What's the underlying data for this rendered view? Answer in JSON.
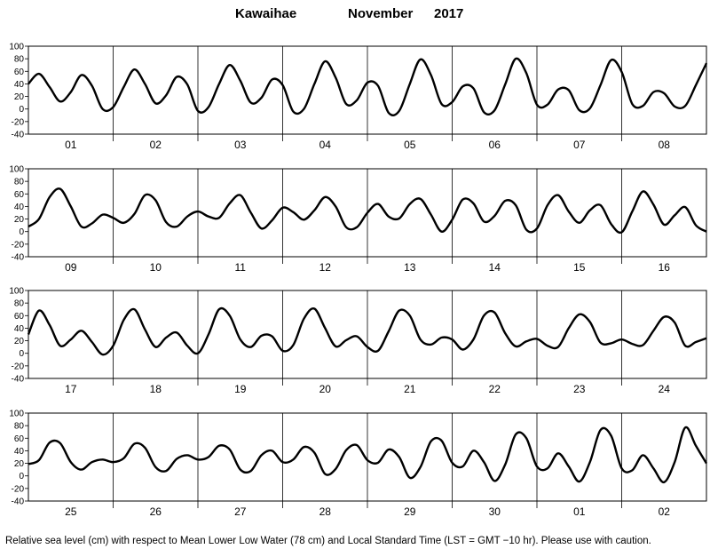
{
  "chart_data": {
    "type": "line",
    "title": {
      "location": "Kawaihae",
      "month": "November",
      "year": "2017"
    },
    "ylabel": "Relative sea level (cm)",
    "ylim": [
      -40,
      100
    ],
    "yticks": [
      -40,
      -20,
      0,
      20,
      40,
      60,
      80,
      100
    ],
    "grid": "vertical lines at day boundaries",
    "footer": "Relative sea level (cm) with respect to Mean Lower Low Water (78 cm) and Local Standard Time (LST = GMT −10 hr). Please use with caution.",
    "line_color": "#000000",
    "panels": [
      {
        "days": [
          "01",
          "02",
          "03",
          "04",
          "05",
          "06",
          "07",
          "08"
        ],
        "series": [
          {
            "x": [
              0,
              0.125,
              0.25,
              0.375,
              0.5,
              0.625,
              0.75,
              0.875,
              1.0,
              1.125,
              1.25,
              1.375,
              1.5,
              1.625,
              1.75,
              1.875,
              2.0,
              2.125,
              2.25,
              2.375,
              2.5,
              2.625,
              2.75,
              2.875,
              3.0,
              3.125,
              3.25,
              3.375,
              3.5,
              3.625,
              3.75,
              3.875,
              4.0,
              4.125,
              4.25,
              4.375,
              4.5,
              4.625,
              4.75,
              4.875,
              5.0,
              5.125,
              5.25,
              5.375,
              5.5,
              5.625,
              5.75,
              5.875,
              6.0,
              6.125,
              6.25,
              6.375,
              6.5,
              6.625,
              6.75,
              6.875,
              7.0,
              7.125,
              7.25,
              7.375,
              7.5,
              7.625,
              7.75,
              7.875,
              8.0
            ],
            "y": [
              40,
              56,
              35,
              12,
              27,
              54,
              37,
              0,
              3,
              35,
              63,
              40,
              9,
              22,
              51,
              39,
              -3,
              3,
              40,
              70,
              45,
              10,
              18,
              47,
              38,
              -4,
              0,
              40,
              76,
              50,
              8,
              14,
              42,
              37,
              -6,
              -3,
              40,
              79,
              54,
              8,
              11,
              36,
              33,
              -5,
              -2,
              39,
              80,
              57,
              7,
              7,
              31,
              30,
              -2,
              1,
              38,
              78,
              59,
              8,
              5,
              27,
              25,
              4,
              5,
              38,
              73
            ]
          }
        ]
      },
      {
        "days": [
          "09",
          "10",
          "11",
          "12",
          "13",
          "14",
          "15",
          "16"
        ],
        "series": [
          {
            "x": [
              0,
              0.125,
              0.25,
              0.375,
              0.5,
              0.625,
              0.75,
              0.875,
              1.0,
              1.125,
              1.25,
              1.375,
              1.5,
              1.625,
              1.75,
              1.875,
              2.0,
              2.125,
              2.25,
              2.375,
              2.5,
              2.625,
              2.75,
              2.875,
              3.0,
              3.125,
              3.25,
              3.375,
              3.5,
              3.625,
              3.75,
              3.875,
              4.0,
              4.125,
              4.25,
              4.375,
              4.5,
              4.625,
              4.75,
              4.875,
              5.0,
              5.125,
              5.25,
              5.375,
              5.5,
              5.625,
              5.75,
              5.875,
              6.0,
              6.125,
              6.25,
              6.375,
              6.5,
              6.625,
              6.75,
              6.875,
              7.0,
              7.125,
              7.25,
              7.375,
              7.5,
              7.625,
              7.75,
              7.875,
              8.0
            ],
            "y": [
              8,
              20,
              55,
              68,
              40,
              8,
              13,
              27,
              22,
              14,
              28,
              58,
              50,
              15,
              8,
              24,
              32,
              24,
              22,
              45,
              58,
              30,
              5,
              18,
              38,
              31,
              19,
              34,
              55,
              40,
              7,
              7,
              30,
              44,
              24,
              21,
              44,
              52,
              27,
              0,
              19,
              51,
              45,
              16,
              25,
              49,
              42,
              3,
              5,
              42,
              58,
              32,
              14,
              34,
              42,
              12,
              -1,
              32,
              64,
              43,
              11,
              26,
              39,
              10,
              0
            ]
          }
        ]
      },
      {
        "days": [
          "17",
          "18",
          "19",
          "20",
          "21",
          "22",
          "23",
          "24"
        ],
        "series": [
          {
            "x": [
              0,
              0.125,
              0.25,
              0.375,
              0.5,
              0.625,
              0.75,
              0.875,
              1.0,
              1.125,
              1.25,
              1.375,
              1.5,
              1.625,
              1.75,
              1.875,
              2.0,
              2.125,
              2.25,
              2.375,
              2.5,
              2.625,
              2.75,
              2.875,
              3.0,
              3.125,
              3.25,
              3.375,
              3.5,
              3.625,
              3.75,
              3.875,
              4.0,
              4.125,
              4.25,
              4.375,
              4.5,
              4.625,
              4.75,
              4.875,
              5.0,
              5.125,
              5.25,
              5.375,
              5.5,
              5.625,
              5.75,
              5.875,
              6.0,
              6.125,
              6.25,
              6.375,
              6.5,
              6.625,
              6.75,
              6.875,
              7.0,
              7.125,
              7.25,
              7.375,
              7.5,
              7.625,
              7.75,
              7.875,
              8.0
            ],
            "y": [
              30,
              68,
              45,
              12,
              22,
              36,
              18,
              -2,
              12,
              53,
              70,
              38,
              10,
              25,
              33,
              12,
              0,
              30,
              70,
              60,
              22,
              10,
              28,
              27,
              4,
              13,
              55,
              71,
              40,
              11,
              21,
              27,
              10,
              4,
              35,
              68,
              60,
              22,
              14,
              25,
              22,
              6,
              22,
              60,
              65,
              32,
              11,
              19,
              23,
              12,
              10,
              40,
              62,
              50,
              17,
              16,
              22,
              15,
              13,
              36,
              58,
              49,
              12,
              18,
              24
            ]
          }
        ]
      },
      {
        "days": [
          "25",
          "26",
          "27",
          "28",
          "29",
          "30",
          "01",
          "02"
        ],
        "series": [
          {
            "x": [
              0,
              0.125,
              0.25,
              0.375,
              0.5,
              0.625,
              0.75,
              0.875,
              1.0,
              1.125,
              1.25,
              1.375,
              1.5,
              1.625,
              1.75,
              1.875,
              2.0,
              2.125,
              2.25,
              2.375,
              2.5,
              2.625,
              2.75,
              2.875,
              3.0,
              3.125,
              3.25,
              3.375,
              3.5,
              3.625,
              3.75,
              3.875,
              4.0,
              4.125,
              4.25,
              4.375,
              4.5,
              4.625,
              4.75,
              4.875,
              5.0,
              5.125,
              5.25,
              5.375,
              5.5,
              5.625,
              5.75,
              5.875,
              6.0,
              6.125,
              6.25,
              6.375,
              6.5,
              6.625,
              6.75,
              6.875,
              7.0,
              7.125,
              7.25,
              7.375,
              7.5,
              7.625,
              7.75,
              7.875,
              8.0
            ],
            "y": [
              19,
              25,
              53,
              52,
              22,
              10,
              22,
              26,
              22,
              28,
              51,
              45,
              14,
              8,
              27,
              33,
              26,
              30,
              48,
              42,
              10,
              8,
              33,
              40,
              22,
              26,
              46,
              37,
              3,
              11,
              41,
              49,
              25,
              21,
              42,
              30,
              -3,
              14,
              55,
              56,
              21,
              15,
              40,
              22,
              -8,
              18,
              66,
              60,
              15,
              12,
              36,
              15,
              -9,
              22,
              73,
              64,
              12,
              9,
              33,
              12,
              -10,
              22,
              77,
              48,
              20
            ]
          }
        ]
      }
    ]
  }
}
